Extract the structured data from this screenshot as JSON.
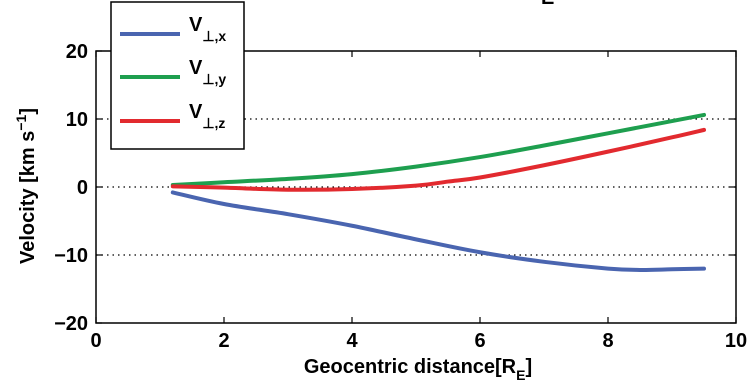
{
  "chart_data": {
    "type": "line",
    "xlabel": {
      "main": "Geocentric distance[R",
      "sub": "E",
      "close": "]"
    },
    "ylabel": {
      "main": "Velocity [km s",
      "sup": "−1",
      "close": "]"
    },
    "xlim": [
      0,
      10
    ],
    "ylim": [
      -20,
      20
    ],
    "xticks": [
      "0",
      "2",
      "4",
      "6",
      "8",
      "10"
    ],
    "yticks": [
      "20",
      "10",
      "0",
      "−10",
      "−20"
    ],
    "grid": "dotted horizontal at y = -10, 0, 10",
    "legend_position": "top-left, partially above the axes",
    "partial_top_text": "E",
    "series": [
      {
        "name": {
          "base": "V",
          "sub": "⊥,x"
        },
        "color": "#4a65b0",
        "x": [
          1.2,
          2,
          3,
          4,
          5,
          6,
          7,
          8,
          8.5,
          9,
          9.5
        ],
        "y": [
          -0.8,
          -2.5,
          -4.0,
          -5.7,
          -7.7,
          -9.6,
          -11.0,
          -12.0,
          -12.2,
          -12.1,
          -12.0
        ]
      },
      {
        "name": {
          "base": "V",
          "sub": "⊥,y"
        },
        "color": "#1e9f4f",
        "x": [
          1.2,
          2,
          3,
          4,
          5,
          6,
          7,
          8,
          9,
          9.5
        ],
        "y": [
          0.3,
          0.7,
          1.2,
          1.9,
          3.0,
          4.4,
          6.1,
          7.9,
          9.7,
          10.6
        ]
      },
      {
        "name": {
          "base": "V",
          "sub": "⊥,z"
        },
        "color": "#e22a2f",
        "x": [
          1.2,
          2,
          3,
          4,
          5,
          5.5,
          6,
          7,
          8,
          9,
          9.5
        ],
        "y": [
          0.1,
          -0.1,
          -0.4,
          -0.3,
          0.2,
          0.8,
          1.4,
          3.2,
          5.2,
          7.3,
          8.4
        ]
      }
    ]
  }
}
